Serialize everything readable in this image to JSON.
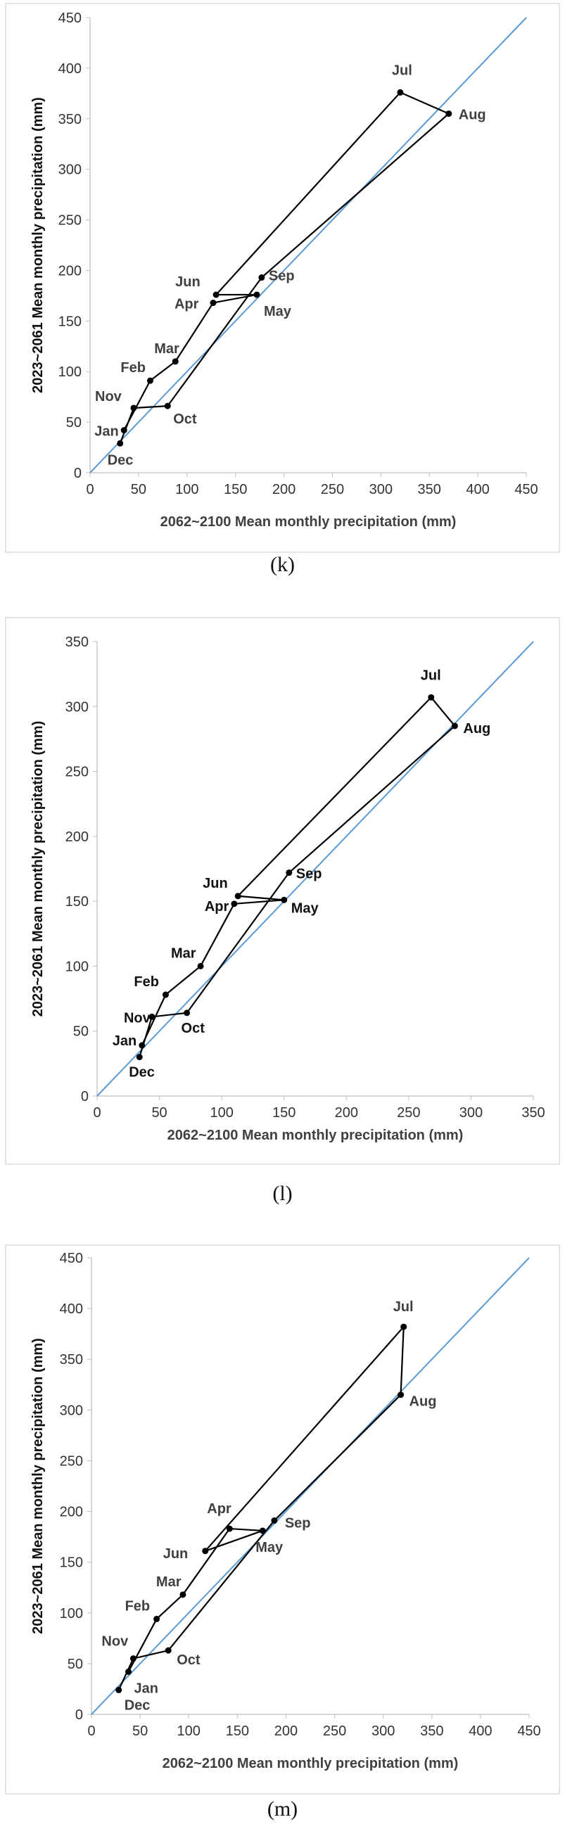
{
  "chart_data": [
    {
      "type": "line",
      "caption": "(k)",
      "xlabel": "2062~2100 Mean monthly precipitation (mm)",
      "ylabel": "2023~2061 Mean monthly precipitation (mm)",
      "xlim": [
        0,
        450
      ],
      "ylim": [
        0,
        450
      ],
      "xticks": [
        0,
        50,
        100,
        150,
        200,
        250,
        300,
        350,
        400,
        450
      ],
      "yticks": [
        0,
        50,
        100,
        150,
        200,
        250,
        300,
        350,
        400,
        450
      ],
      "reference_line": "y = x",
      "label_color": "#404040",
      "points": [
        {
          "label": "Jan",
          "x": 35,
          "y": 42
        },
        {
          "label": "Feb",
          "x": 62,
          "y": 91
        },
        {
          "label": "Mar",
          "x": 88,
          "y": 110
        },
        {
          "label": "Apr",
          "x": 127,
          "y": 168
        },
        {
          "label": "May",
          "x": 172,
          "y": 176
        },
        {
          "label": "Jun",
          "x": 130,
          "y": 176
        },
        {
          "label": "Jul",
          "x": 320,
          "y": 376
        },
        {
          "label": "Aug",
          "x": 370,
          "y": 355
        },
        {
          "label": "Sep",
          "x": 177,
          "y": 193
        },
        {
          "label": "Oct",
          "x": 80,
          "y": 66
        },
        {
          "label": "Nov",
          "x": 45,
          "y": 64
        },
        {
          "label": "Dec",
          "x": 31,
          "y": 29
        }
      ]
    },
    {
      "type": "line",
      "caption": "(l)",
      "xlabel": "2062~2100 Mean monthly precipitation (mm)",
      "ylabel": "2023~2061 Mean monthly precipitation (mm)",
      "xlim": [
        0,
        350
      ],
      "ylim": [
        0,
        350
      ],
      "xticks": [
        0,
        50,
        100,
        150,
        200,
        250,
        300,
        350
      ],
      "yticks": [
        0,
        50,
        100,
        150,
        200,
        250,
        300,
        350
      ],
      "reference_line": "y = x",
      "label_color": "#111111",
      "points": [
        {
          "label": "Jan",
          "x": 36,
          "y": 39
        },
        {
          "label": "Feb",
          "x": 55,
          "y": 78
        },
        {
          "label": "Mar",
          "x": 83,
          "y": 100
        },
        {
          "label": "Apr",
          "x": 110,
          "y": 148
        },
        {
          "label": "May",
          "x": 150,
          "y": 151
        },
        {
          "label": "Jun",
          "x": 113,
          "y": 154
        },
        {
          "label": "Jul",
          "x": 268,
          "y": 307
        },
        {
          "label": "Aug",
          "x": 287,
          "y": 285
        },
        {
          "label": "Sep",
          "x": 154,
          "y": 172
        },
        {
          "label": "Oct",
          "x": 72,
          "y": 64
        },
        {
          "label": "Nov",
          "x": 44,
          "y": 61
        },
        {
          "label": "Dec",
          "x": 34,
          "y": 30
        }
      ]
    },
    {
      "type": "line",
      "caption": "(m)",
      "xlabel": "2062~2100 Mean monthly precipitation (mm)",
      "ylabel": "2023~2061 Mean monthly precipitation (mm)",
      "xlim": [
        0,
        450
      ],
      "ylim": [
        0,
        450
      ],
      "xticks": [
        0,
        50,
        100,
        150,
        200,
        250,
        300,
        350,
        400,
        450
      ],
      "yticks": [
        0,
        50,
        100,
        150,
        200,
        250,
        300,
        350,
        400,
        450
      ],
      "reference_line": "y = x",
      "label_color": "#404040",
      "points": [
        {
          "label": "Jan",
          "x": 38,
          "y": 42
        },
        {
          "label": "Feb",
          "x": 67,
          "y": 94
        },
        {
          "label": "Mar",
          "x": 94,
          "y": 118
        },
        {
          "label": "Apr",
          "x": 142,
          "y": 183
        },
        {
          "label": "May",
          "x": 176,
          "y": 181
        },
        {
          "label": "Jun",
          "x": 117,
          "y": 161
        },
        {
          "label": "Jul",
          "x": 321,
          "y": 382
        },
        {
          "label": "Aug",
          "x": 318,
          "y": 315
        },
        {
          "label": "Sep",
          "x": 188,
          "y": 191
        },
        {
          "label": "Oct",
          "x": 79,
          "y": 63
        },
        {
          "label": "Nov",
          "x": 43,
          "y": 55
        },
        {
          "label": "Dec",
          "x": 28,
          "y": 24
        }
      ]
    }
  ]
}
